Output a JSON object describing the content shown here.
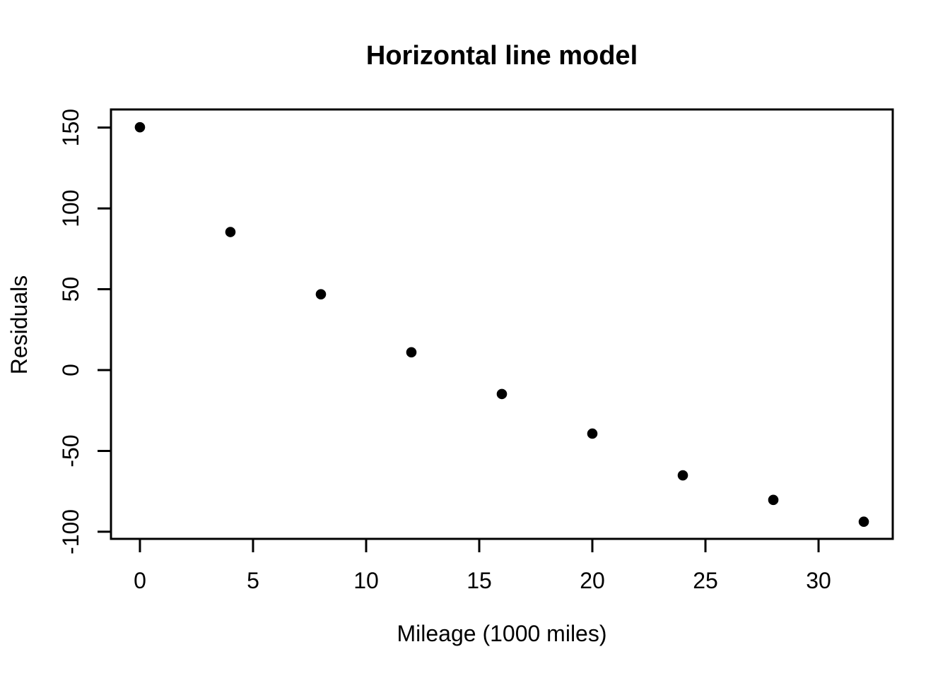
{
  "figure": {
    "background": "#ffffff"
  },
  "chart_data": {
    "type": "scatter",
    "title": "Horizontal line model",
    "xlabel": "Mileage (1000 miles)",
    "ylabel": "Residuals",
    "x": [
      0,
      4,
      8,
      12,
      16,
      20,
      24,
      28,
      32
    ],
    "y": [
      150.2,
      85.4,
      46.9,
      11.0,
      -14.8,
      -39.3,
      -65.1,
      -80.3,
      -93.8
    ],
    "x_ticks": [
      0,
      5,
      10,
      15,
      20,
      25,
      30
    ],
    "y_ticks": [
      150,
      100,
      50,
      0,
      -50,
      -100
    ],
    "xlim": [
      -1.28,
      33.28
    ],
    "ylim": [
      -104.4,
      161.2
    ],
    "grid": false,
    "legend": "none",
    "point_style": "filled-circle",
    "point_color": "#000000",
    "axis_color": "#000000"
  }
}
